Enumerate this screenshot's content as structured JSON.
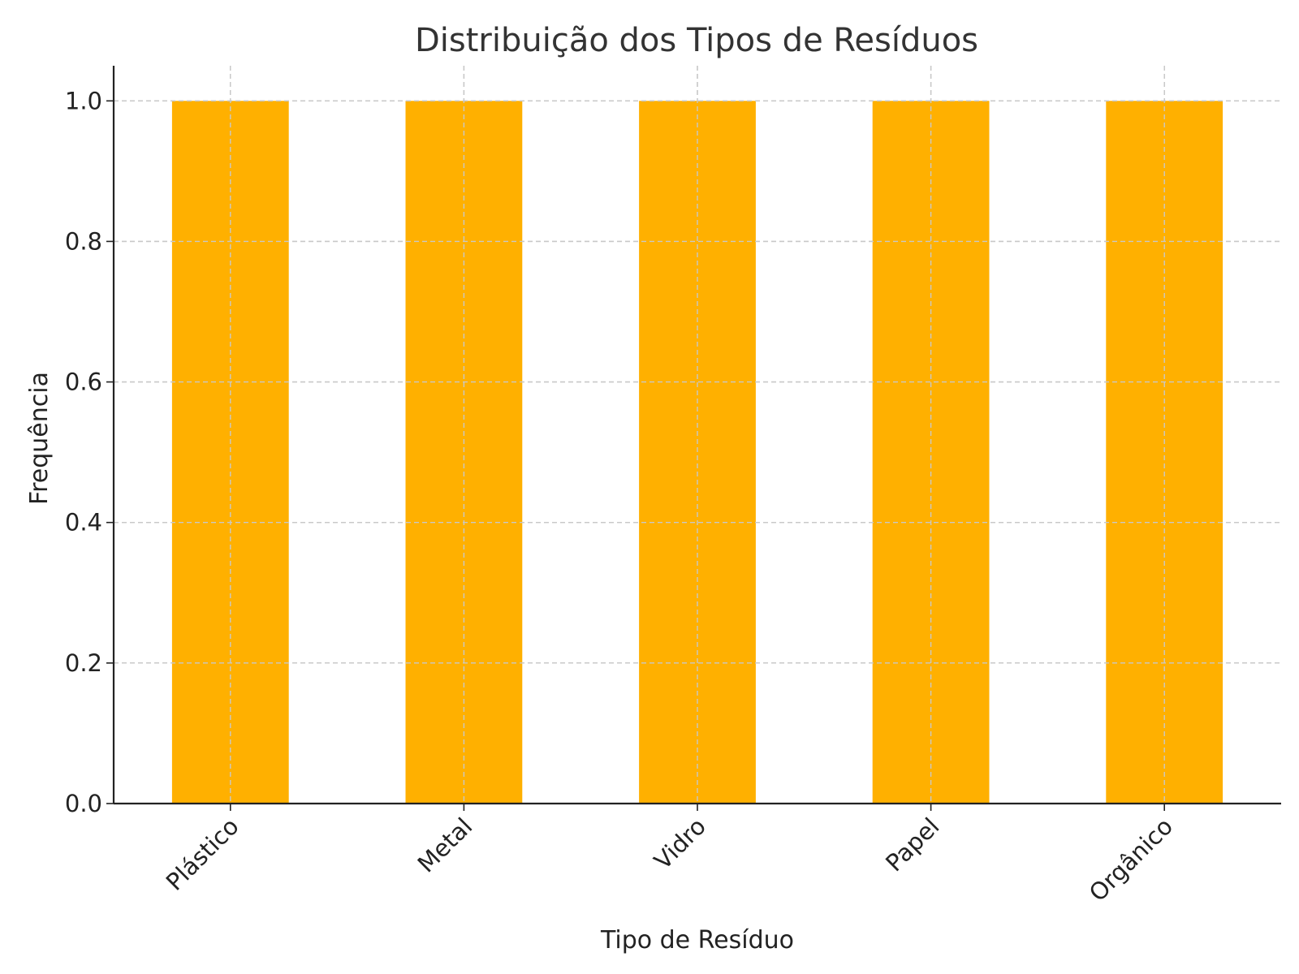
{
  "chart_data": {
    "type": "bar",
    "title": "Distribuição dos Tipos de Resíduos",
    "xlabel": "Tipo de Resíduo",
    "ylabel": "Frequência",
    "categories": [
      "Plástico",
      "Metal",
      "Vidro",
      "Papel",
      "Orgânico"
    ],
    "values": [
      1,
      1,
      1,
      1,
      1
    ],
    "ylim": [
      0,
      1.05
    ],
    "yticks": [
      "0.0",
      "0.2",
      "0.4",
      "0.6",
      "0.8",
      "1.0"
    ],
    "grid": true,
    "bar_color": "#FFB000",
    "legend": "none"
  }
}
